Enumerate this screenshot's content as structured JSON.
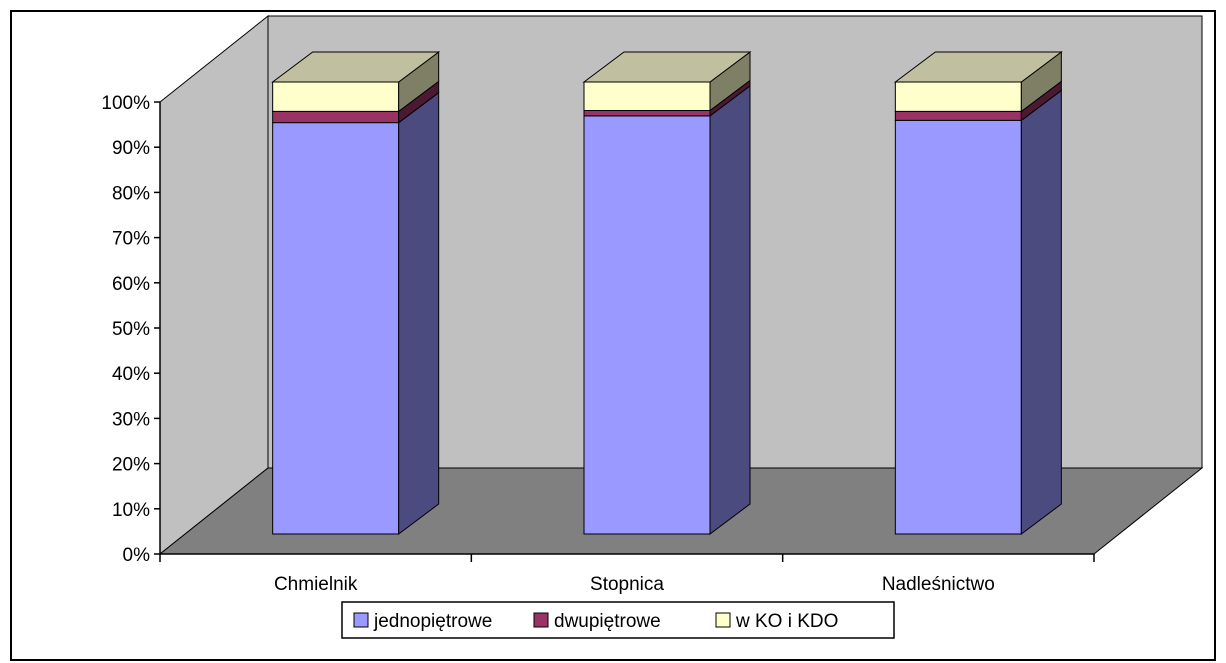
{
  "chart_data": {
    "type": "bar",
    "stacked": true,
    "three_d": true,
    "categories": [
      "Chmielnik",
      "Stopnica",
      "Nadleśnictwo"
    ],
    "series": [
      {
        "name": "jednopiętrowe",
        "values": [
          91,
          92.5,
          91.5
        ],
        "color": "#9999ff"
      },
      {
        "name": "dwupiętrowe",
        "values": [
          2.5,
          1.2,
          2.0
        ],
        "color": "#993366"
      },
      {
        "name": "w KO i KDO",
        "values": [
          6.5,
          6.3,
          6.5
        ],
        "color": "#ffffcc"
      }
    ],
    "y_ticks": [
      "0%",
      "10%",
      "20%",
      "30%",
      "40%",
      "50%",
      "60%",
      "70%",
      "80%",
      "90%",
      "100%"
    ],
    "ylim": [
      0,
      100
    ],
    "legend_position": "bottom",
    "grid": false,
    "colors": {
      "wall": "#c0c0c0",
      "floor": "#808080",
      "series_side": [
        "#4b4b7f",
        "#4c1933",
        "#7f7f66"
      ],
      "series_top": [
        "#7a7acc",
        "#7a2952",
        "#c0c0a0"
      ]
    }
  }
}
